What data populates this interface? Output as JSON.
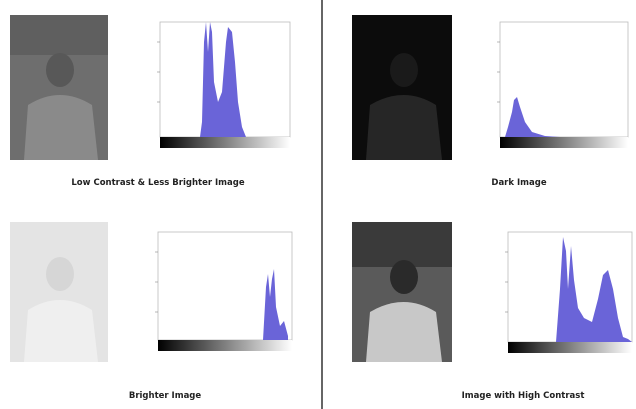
{
  "panels": [
    {
      "caption": "Low Contrast & Less Brighter Image"
    },
    {
      "caption": "Dark Image"
    },
    {
      "caption": "Brighter Image"
    },
    {
      "caption": "Image with High Contrast"
    }
  ]
}
